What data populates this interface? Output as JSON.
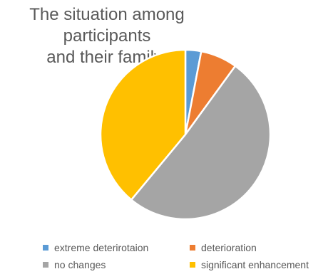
{
  "chart_data": {
    "type": "pie",
    "title_lines": [
      "The situation among participants",
      "and their family:"
    ],
    "categories": [
      "extreme deterirotaion",
      "deterioration",
      "no changes",
      "significant enhancement"
    ],
    "values": [
      3,
      7,
      51,
      39
    ],
    "colors": [
      "#5B9BD5",
      "#ED7D31",
      "#A5A5A5",
      "#FFC000"
    ],
    "start_angle_deg": 0,
    "direction": "clockwise",
    "legend_position": "bottom"
  }
}
